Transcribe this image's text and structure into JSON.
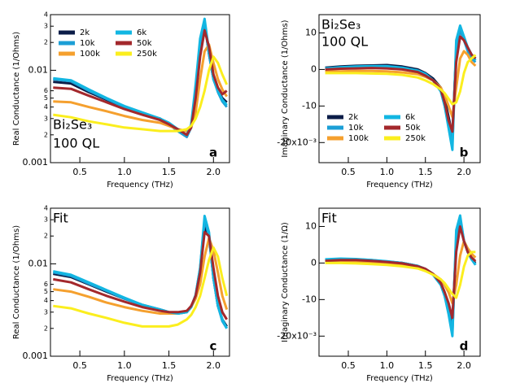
{
  "chart_data": [
    {
      "type": "line",
      "log_y": true,
      "legend": "upper left",
      "ylabel": "Real Conductance (1/Ohms)",
      "xlabel": "Frequency (THz)",
      "panel": "a",
      "annotations": [
        "Bi₂Se₃",
        "100 QL"
      ],
      "xlim": [
        0.17,
        2.18
      ],
      "xticks": [
        0.5,
        {
          "value": 1,
          "label": "1.0"
        },
        1.5,
        {
          "value": 2,
          "label": "2.0"
        }
      ],
      "ylim": [
        0.001,
        0.04
      ],
      "yticks": [
        0.001,
        {
          "value": 0.002,
          "label": "2"
        },
        {
          "value": 0.003,
          "label": "3"
        },
        {
          "value": 0.004,
          "label": "4"
        },
        {
          "value": 0.005,
          "label": "5"
        },
        {
          "value": 0.006,
          "label": "6"
        },
        0.01,
        {
          "value": 0.02,
          "label": "2"
        },
        {
          "value": 0.03,
          "label": "3"
        },
        {
          "value": 0.04,
          "label": "4"
        }
      ],
      "x": [
        0.2,
        0.4,
        0.6,
        0.8,
        1.0,
        1.2,
        1.4,
        1.5,
        1.6,
        1.7,
        1.75,
        1.8,
        1.85,
        1.9,
        1.95,
        2.0,
        2.05,
        2.1,
        2.15
      ],
      "series": [
        {
          "name": "2k",
          "color": "#0b1d48",
          "values": [
            0.0075,
            0.0072,
            0.0058,
            0.0048,
            0.004,
            0.0034,
            0.003,
            0.0026,
            0.0022,
            0.0019,
            0.0025,
            0.006,
            0.018,
            0.033,
            0.015,
            0.008,
            0.006,
            0.005,
            0.0045
          ]
        },
        {
          "name": "10k",
          "color": "#1c9fd6",
          "values": [
            0.008,
            0.0076,
            0.006,
            0.0049,
            0.004,
            0.0034,
            0.0029,
            0.0026,
            0.0022,
            0.0019,
            0.0024,
            0.006,
            0.02,
            0.034,
            0.015,
            0.008,
            0.0058,
            0.0046,
            0.004
          ]
        },
        {
          "name": "100k",
          "color": "#f5a02e",
          "values": [
            0.0046,
            0.0045,
            0.004,
            0.0036,
            0.0032,
            0.0029,
            0.0027,
            0.0025,
            0.0023,
            0.0022,
            0.0024,
            0.0035,
            0.008,
            0.016,
            0.019,
            0.012,
            0.008,
            0.0062,
            0.0052
          ]
        },
        {
          "name": "6k",
          "color": "#12b6e2",
          "values": [
            0.0082,
            0.0078,
            0.0062,
            0.005,
            0.0041,
            0.0035,
            0.003,
            0.0027,
            0.0023,
            0.002,
            0.0026,
            0.007,
            0.022,
            0.036,
            0.016,
            0.008,
            0.006,
            0.0048,
            0.0042
          ]
        },
        {
          "name": "50k",
          "color": "#a3282c",
          "values": [
            0.0065,
            0.0063,
            0.0053,
            0.0045,
            0.0038,
            0.0033,
            0.0029,
            0.0026,
            0.0023,
            0.002,
            0.0024,
            0.005,
            0.014,
            0.027,
            0.018,
            0.009,
            0.0065,
            0.0055,
            0.006
          ]
        },
        {
          "name": "250k",
          "color": "#fbee1e",
          "values": [
            0.0033,
            0.0031,
            0.0028,
            0.0026,
            0.0024,
            0.0023,
            0.0022,
            0.0022,
            0.0022,
            0.0023,
            0.0025,
            0.003,
            0.004,
            0.006,
            0.01,
            0.014,
            0.012,
            0.009,
            0.007
          ]
        }
      ]
    },
    {
      "type": "line",
      "log_y": false,
      "legend": "lower left",
      "ylabel": "Imaginary Conductance (1/Ohms)",
      "xlabel": "Frequency (THz)",
      "panel": "b",
      "annotations": [
        "Bi₂Se₃",
        "100 QL"
      ],
      "xlim": [
        0.12,
        2.21
      ],
      "xticks": [
        0.5,
        {
          "value": 1,
          "label": "1.0"
        },
        1.5,
        {
          "value": 2,
          "label": "2.0"
        }
      ],
      "ylim": [
        -25.5,
        15
      ],
      "yticks": [
        10,
        0,
        -10,
        {
          "value": -20,
          "label": "-20x10⁻³"
        }
      ],
      "x": [
        0.2,
        0.4,
        0.6,
        0.8,
        1.0,
        1.2,
        1.4,
        1.5,
        1.6,
        1.7,
        1.75,
        1.8,
        1.85,
        1.9,
        1.95,
        2.0,
        2.05,
        2.1,
        2.15
      ],
      "series": [
        {
          "name": "2k",
          "color": "#0b1d48",
          "values": [
            0.5,
            0.8,
            1,
            1.1,
            1.2,
            0.8,
            0,
            -1,
            -2.5,
            -5,
            -8,
            -13,
            -18,
            5,
            11,
            8,
            6,
            4,
            3
          ]
        },
        {
          "name": "10k",
          "color": "#1c9fd6",
          "values": [
            0.2,
            0.4,
            0.5,
            0.6,
            0.6,
            0.2,
            -0.5,
            -1.5,
            -3,
            -6,
            -10,
            -15,
            -20,
            6,
            11,
            8,
            5,
            3,
            2
          ]
        },
        {
          "name": "100k",
          "color": "#f5a02e",
          "values": [
            -0.5,
            -0.5,
            -0.4,
            -0.4,
            -0.5,
            -0.8,
            -1.3,
            -2,
            -3,
            -5,
            -7,
            -10,
            -13,
            -5,
            3,
            5,
            4,
            2,
            1
          ]
        },
        {
          "name": "6k",
          "color": "#12b6e2",
          "values": [
            0.3,
            0.6,
            0.8,
            0.9,
            0.9,
            0.5,
            -0.3,
            -1.2,
            -3,
            -6,
            -10,
            -16,
            -22,
            8,
            12,
            9,
            6,
            4,
            2.5
          ]
        },
        {
          "name": "50k",
          "color": "#a3282c",
          "values": [
            0,
            0.2,
            0.3,
            0.4,
            0.3,
            0,
            -0.7,
            -1.7,
            -3,
            -5.5,
            -9,
            -14,
            -17,
            2,
            9,
            8,
            6,
            4,
            3
          ]
        },
        {
          "name": "250k",
          "color": "#fbee1e",
          "values": [
            -1,
            -1,
            -1,
            -1.1,
            -1.2,
            -1.5,
            -2.2,
            -3,
            -4,
            -5.5,
            -6.5,
            -8,
            -9.5,
            -9,
            -6,
            -1,
            2,
            3,
            4
          ]
        }
      ]
    },
    {
      "type": "line",
      "log_y": true,
      "ylabel": "Real Conductance (1/Ohms)",
      "xlabel": "Frequency (THz)",
      "panel": "c",
      "annotations": [
        "Fit"
      ],
      "xlim": [
        0.17,
        2.18
      ],
      "xticks": [
        0.5,
        {
          "value": 1,
          "label": "1.0"
        },
        1.5,
        {
          "value": 2,
          "label": "2.0"
        }
      ],
      "ylim": [
        0.001,
        0.04
      ],
      "yticks": [
        0.001,
        {
          "value": 0.002,
          "label": "2"
        },
        {
          "value": 0.003,
          "label": "3"
        },
        {
          "value": 0.004,
          "label": "4"
        },
        {
          "value": 0.005,
          "label": "5"
        },
        {
          "value": 0.006,
          "label": "6"
        },
        0.01,
        {
          "value": 0.02,
          "label": "2"
        },
        {
          "value": 0.03,
          "label": "3"
        },
        {
          "value": 0.04,
          "label": "4"
        }
      ],
      "x": [
        0.2,
        0.4,
        0.6,
        0.8,
        1.0,
        1.2,
        1.4,
        1.5,
        1.6,
        1.7,
        1.75,
        1.8,
        1.85,
        1.9,
        1.95,
        2.0,
        2.05,
        2.1,
        2.15
      ],
      "series": [
        {
          "color": "#0b1d48",
          "values": [
            0.0078,
            0.0072,
            0.006,
            0.005,
            0.0042,
            0.0036,
            0.0032,
            0.003,
            0.0029,
            0.003,
            0.0034,
            0.0045,
            0.008,
            0.025,
            0.02,
            0.007,
            0.0035,
            0.0025,
            0.0021
          ]
        },
        {
          "color": "#1c9fd6",
          "values": [
            0.0081,
            0.0074,
            0.0061,
            0.0051,
            0.0042,
            0.0036,
            0.0032,
            0.003,
            0.0029,
            0.003,
            0.0034,
            0.0046,
            0.009,
            0.03,
            0.02,
            0.007,
            0.0035,
            0.0024,
            0.002
          ]
        },
        {
          "color": "#f5a02e",
          "values": [
            0.0053,
            0.005,
            0.0044,
            0.0038,
            0.0034,
            0.0031,
            0.0029,
            0.0029,
            0.0029,
            0.0031,
            0.0034,
            0.0042,
            0.006,
            0.012,
            0.019,
            0.014,
            0.008,
            0.0045,
            0.0032
          ]
        },
        {
          "color": "#12b6e2",
          "values": [
            0.0083,
            0.0076,
            0.0063,
            0.0052,
            0.0043,
            0.0036,
            0.0032,
            0.003,
            0.0029,
            0.003,
            0.0034,
            0.0046,
            0.009,
            0.033,
            0.022,
            0.007,
            0.0035,
            0.0025,
            0.002
          ]
        },
        {
          "color": "#a3282c",
          "values": [
            0.0068,
            0.0063,
            0.0053,
            0.0045,
            0.0039,
            0.0034,
            0.0031,
            0.003,
            0.003,
            0.0031,
            0.0035,
            0.0045,
            0.008,
            0.022,
            0.02,
            0.009,
            0.0045,
            0.003,
            0.0025
          ]
        },
        {
          "color": "#fbee1e",
          "values": [
            0.0035,
            0.0033,
            0.0029,
            0.0026,
            0.0023,
            0.0021,
            0.0021,
            0.0021,
            0.0022,
            0.0025,
            0.0028,
            0.0034,
            0.0045,
            0.007,
            0.011,
            0.015,
            0.012,
            0.007,
            0.0045
          ]
        }
      ]
    },
    {
      "type": "line",
      "log_y": false,
      "ylabel": "Imaginary Conductance (1/Ω)",
      "xlabel": "Frequency (THz)",
      "panel": "d",
      "annotations": [
        "Fit"
      ],
      "xlim": [
        0.12,
        2.21
      ],
      "xticks": [
        0.5,
        {
          "value": 1,
          "label": "1.0"
        },
        1.5,
        {
          "value": 2,
          "label": "2.0"
        }
      ],
      "ylim": [
        -25.5,
        15
      ],
      "yticks": [
        10,
        0,
        -10,
        {
          "value": -20,
          "label": "-20x10⁻³"
        }
      ],
      "x": [
        0.2,
        0.4,
        0.6,
        0.8,
        1.0,
        1.2,
        1.4,
        1.5,
        1.6,
        1.7,
        1.75,
        1.8,
        1.85,
        1.9,
        1.95,
        2.0,
        2.05,
        2.1,
        2.15
      ],
      "series": [
        {
          "color": "#0b1d48",
          "values": [
            0.8,
            1,
            0.9,
            0.7,
            0.4,
            0,
            -0.8,
            -1.6,
            -3,
            -5.5,
            -8,
            -12,
            -16,
            5,
            11,
            6,
            3,
            1,
            0
          ]
        },
        {
          "color": "#1c9fd6",
          "values": [
            0.9,
            1.1,
            1,
            0.8,
            0.4,
            0,
            -0.8,
            -1.7,
            -3.2,
            -6,
            -9,
            -13,
            -19,
            7,
            12,
            6,
            3,
            1,
            -0.5
          ]
        },
        {
          "color": "#f5a02e",
          "values": [
            0.3,
            0.4,
            0.4,
            0.2,
            0,
            -0.4,
            -1.2,
            -1.8,
            -3,
            -4.5,
            -6,
            -8,
            -11,
            -6,
            2,
            6,
            4,
            2.5,
            1.5
          ]
        },
        {
          "color": "#12b6e2",
          "values": [
            1,
            1.2,
            1.1,
            0.8,
            0.5,
            0,
            -0.8,
            -1.7,
            -3.2,
            -6,
            -9,
            -14,
            -20,
            9,
            13,
            6,
            3,
            1,
            -0.5
          ]
        },
        {
          "color": "#a3282c",
          "values": [
            0.6,
            0.8,
            0.8,
            0.6,
            0.3,
            -0.1,
            -0.9,
            -1.6,
            -3,
            -5.5,
            -8,
            -11,
            -15,
            3,
            10,
            6,
            3,
            1.5,
            0.5
          ]
        },
        {
          "color": "#fbee1e",
          "values": [
            0,
            0,
            -0.1,
            -0.3,
            -0.5,
            -0.9,
            -1.5,
            -2.2,
            -3.2,
            -4.5,
            -5.5,
            -7,
            -8.5,
            -9.5,
            -6,
            -1,
            2,
            3,
            3
          ]
        }
      ]
    }
  ]
}
